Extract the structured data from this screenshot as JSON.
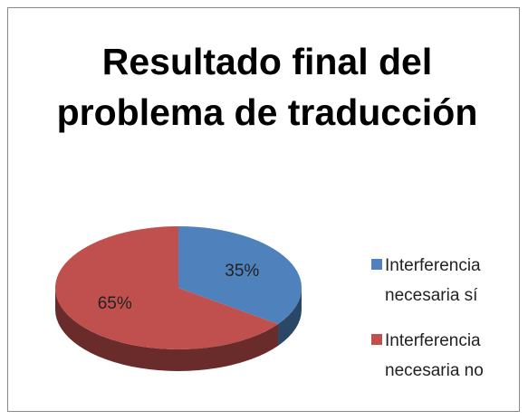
{
  "chart_data": {
    "type": "pie",
    "title": "Resultado final del problema de traducción",
    "categories": [
      "Interferencia necesaria sí",
      "Interferencia necesaria no"
    ],
    "values": [
      35,
      65
    ],
    "value_labels": [
      "35%",
      "65%"
    ],
    "colors": [
      "#4f81bd",
      "#c0504d"
    ],
    "legend": "right"
  }
}
